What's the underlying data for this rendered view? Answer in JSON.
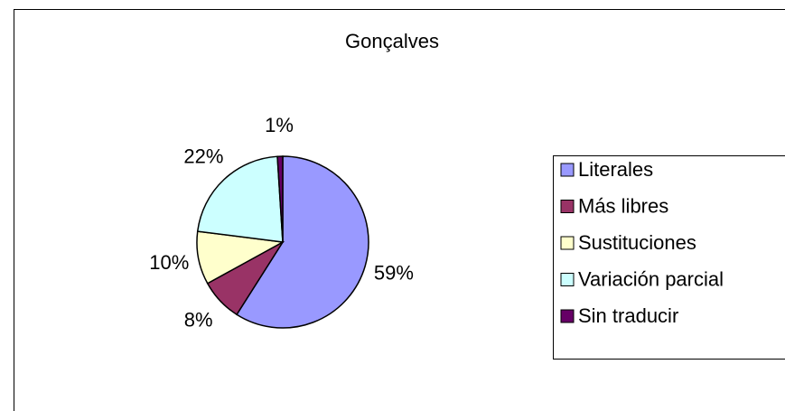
{
  "chart_data": {
    "type": "pie",
    "title": "Gonçalves",
    "categories": [
      "Literales",
      "Más libres",
      "Sustituciones",
      "Variación parcial",
      "Sin traducir"
    ],
    "values": [
      59,
      8,
      10,
      22,
      1
    ],
    "value_labels": [
      "59%",
      "8%",
      "10%",
      "22%",
      "1%"
    ],
    "colors": [
      "#9999ff",
      "#993366",
      "#ffffcc",
      "#ccffff",
      "#660066"
    ],
    "legend": "right"
  }
}
